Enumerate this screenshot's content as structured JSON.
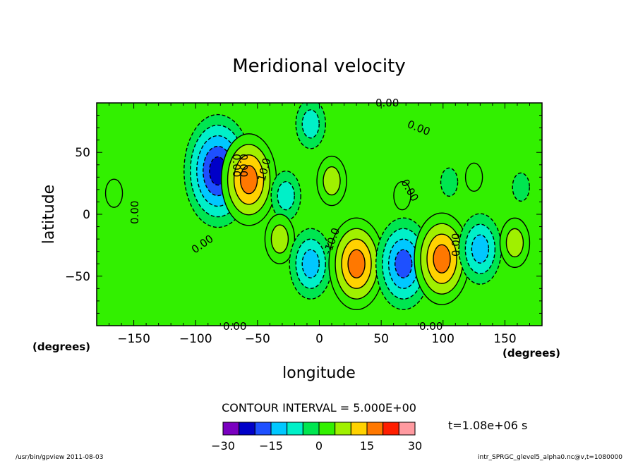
{
  "chart_data": {
    "type": "heatmap",
    "title": "Meridional velocity",
    "xlabel": "longitude",
    "ylabel": "latitude",
    "x_units": "(degrees)",
    "y_units": "(degrees)",
    "xlim": [
      -180,
      180
    ],
    "ylim": [
      -90,
      90
    ],
    "x_ticks": [
      -150,
      -100,
      -50,
      0,
      50,
      100,
      150
    ],
    "y_ticks": [
      50,
      0,
      -50
    ],
    "x_tick_labels": [
      "−150",
      "−100",
      "−50",
      "0",
      "50",
      "100",
      "150"
    ],
    "y_tick_labels": [
      "50",
      "0",
      "−50"
    ],
    "contour_interval_label": "CONTOUR INTERVAL = 5.000E+00",
    "time_label": "t=1.08e+06 s",
    "contour_labels": [
      "0.00",
      "0.00",
      "0.00",
      "0.00",
      "0.00",
      "0.00",
      "0.00",
      "0.00",
      "0.00",
      "0.00",
      "10.0",
      "-10.0"
    ],
    "colorbar": {
      "levels": [
        -30,
        -25,
        -20,
        -15,
        -10,
        -5,
        0,
        5,
        10,
        15,
        20,
        25,
        30
      ],
      "tick_labels": [
        "−30",
        "−15",
        "0",
        "15",
        "30"
      ],
      "colors": [
        "#7a00c0",
        "#0000c8",
        "#1e50ff",
        "#00c8ff",
        "#00f0c8",
        "#00e650",
        "#32f000",
        "#a0f000",
        "#ffd200",
        "#ff7800",
        "#ff1e00",
        "#ff9aa0"
      ]
    },
    "background_level_color": "#32f000",
    "extrema": [
      {
        "lon": -82,
        "lat": 35,
        "value": -22
      },
      {
        "lon": -57,
        "lat": 28,
        "value": 18
      },
      {
        "lon": -27,
        "lat": 15,
        "value": -8
      },
      {
        "lon": 10,
        "lat": 27,
        "value": 8
      },
      {
        "lon": -32,
        "lat": -20,
        "value": 8
      },
      {
        "lon": -7,
        "lat": -40,
        "value": -13
      },
      {
        "lon": 30,
        "lat": -40,
        "value": 17
      },
      {
        "lon": 68,
        "lat": -40,
        "value": -17
      },
      {
        "lon": 99,
        "lat": -36,
        "value": 18
      },
      {
        "lon": 130,
        "lat": -28,
        "value": -12
      },
      {
        "lon": 158,
        "lat": -23,
        "value": 8
      },
      {
        "lon": 67,
        "lat": 15,
        "value": 5
      },
      {
        "lon": 105,
        "lat": 26,
        "value": -4
      },
      {
        "lon": 125,
        "lat": 30,
        "value": 4
      },
      {
        "lon": 163,
        "lat": 22,
        "value": -4
      },
      {
        "lon": -7,
        "lat": 73,
        "value": -7
      },
      {
        "lon": -166,
        "lat": 17,
        "value": 4
      }
    ]
  },
  "footer": {
    "left": "/usr/bin/gpview   2011-08-03",
    "right": "intr_SPRGC_glevel5_alpha0.nc@v,t=1080000"
  }
}
